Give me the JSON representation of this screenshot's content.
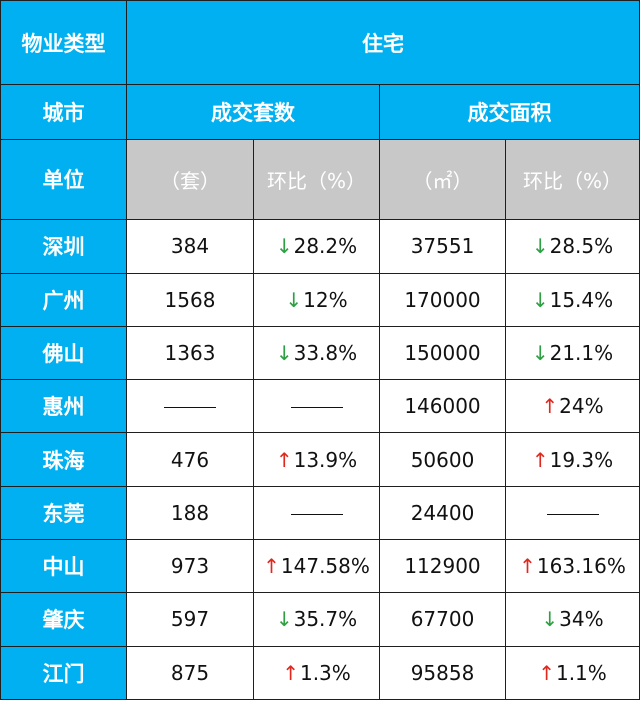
{
  "header": {
    "property_type_label": "物业类型",
    "property_type_value": "住宅",
    "city_label": "城市",
    "deal_count_label": "成交套数",
    "deal_area_label": "成交面积",
    "unit_label": "单位",
    "units": [
      "（套）",
      "环比（%）",
      "（㎡）",
      "环比（%）"
    ]
  },
  "colors": {
    "header_bg": "#00b0f0",
    "unit_bg": "#c8c8c8",
    "down_arrow": "#2ea043",
    "up_arrow": "#e0281e"
  },
  "rows": [
    {
      "city": "深圳",
      "count": "384",
      "count_dir": "down",
      "count_pct": "28.2%",
      "area": "37551",
      "area_dir": "down",
      "area_pct": "28.5%"
    },
    {
      "city": "广州",
      "count": "1568",
      "count_dir": "down",
      "count_pct": "12%",
      "area": "170000",
      "area_dir": "down",
      "area_pct": "15.4%"
    },
    {
      "city": "佛山",
      "count": "1363",
      "count_dir": "down",
      "count_pct": "33.8%",
      "area": "150000",
      "area_dir": "down",
      "area_pct": "21.1%"
    },
    {
      "city": "惠州",
      "count": "——",
      "count_dir": "none",
      "count_pct": "——",
      "area": "146000",
      "area_dir": "up",
      "area_pct": "24%"
    },
    {
      "city": "珠海",
      "count": "476",
      "count_dir": "up",
      "count_pct": "13.9%",
      "area": "50600",
      "area_dir": "up",
      "area_pct": "19.3%"
    },
    {
      "city": "东莞",
      "count": "188",
      "count_dir": "none",
      "count_pct": "——",
      "area": "24400",
      "area_dir": "none",
      "area_pct": "——"
    },
    {
      "city": "中山",
      "count": "973",
      "count_dir": "up",
      "count_pct": "147.58%",
      "area": "112900",
      "area_dir": "up",
      "area_pct": "163.16%"
    },
    {
      "city": "肇庆",
      "count": "597",
      "count_dir": "down",
      "count_pct": "35.7%",
      "area": "67700",
      "area_dir": "down",
      "area_pct": "34%"
    },
    {
      "city": "江门",
      "count": "875",
      "count_dir": "up",
      "count_pct": "1.3%",
      "area": "95858",
      "area_dir": "up",
      "area_pct": "1.1%"
    }
  ]
}
